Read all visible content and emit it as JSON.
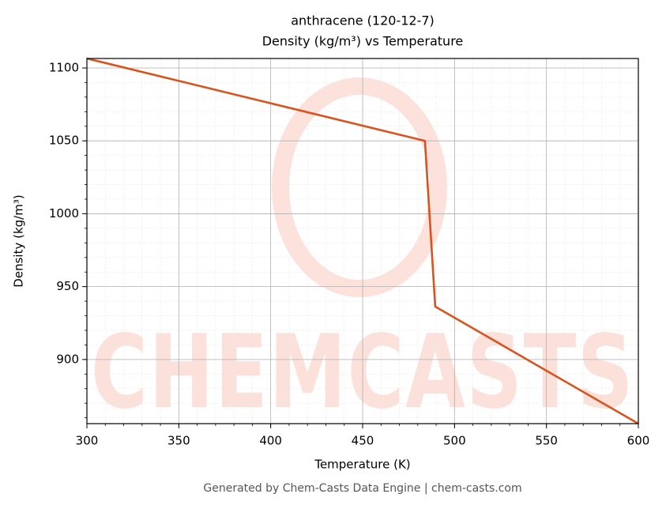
{
  "chart_data": {
    "type": "line",
    "title": "anthracene (120-12-7)",
    "subtitle": "Density (kg/m³) vs Temperature",
    "x_label": "Temperature (K)",
    "y_label": "Density (kg/m³)",
    "watermark": "CHEMCASTS",
    "footer": "Generated by Chem-Casts Data Engine | chem-casts.com",
    "x": [
      300,
      483.9,
      489.5,
      600
    ],
    "series": [
      {
        "name": "Density",
        "color": "#d9531e",
        "values": [
          1106.5,
          1050,
          936.3,
          856
        ]
      }
    ],
    "xlim": [
      300,
      600
    ],
    "xticks": [
      300,
      350,
      400,
      450,
      500,
      550,
      600
    ],
    "ylim": [
      856,
      1106.5
    ],
    "yticks": [
      900,
      950,
      1000,
      1050,
      1100
    ],
    "grid": true
  }
}
